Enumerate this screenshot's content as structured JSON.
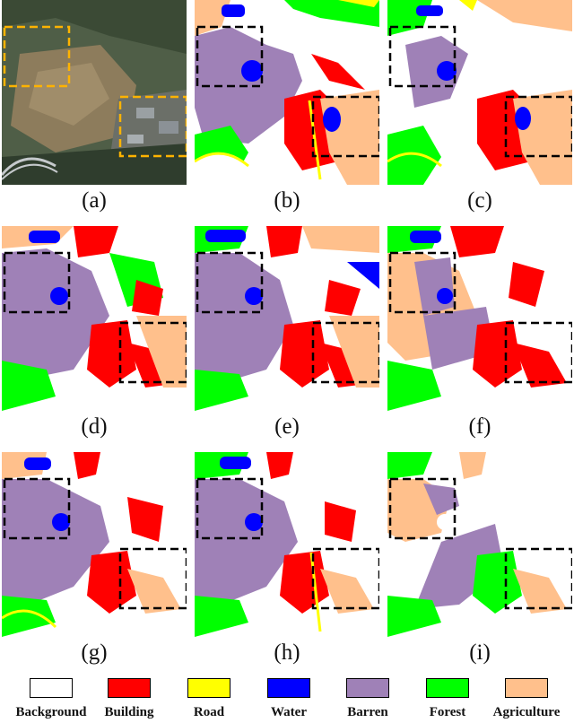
{
  "captions": [
    "(a)",
    "(b)",
    "(c)",
    "(d)",
    "(e)",
    "(f)",
    "(g)",
    "(h)",
    "(i)"
  ],
  "legend": [
    {
      "label": "Background",
      "color": "#ffffff"
    },
    {
      "label": "Building",
      "color": "#ff0000"
    },
    {
      "label": "Road",
      "color": "#ffff00"
    },
    {
      "label": "Water",
      "color": "#0000ff"
    },
    {
      "label": "Barren",
      "color": "#9f81b7"
    },
    {
      "label": "Forest",
      "color": "#00ff00"
    },
    {
      "label": "Agriculture",
      "color": "#ffc08c"
    }
  ],
  "highlight_box_colors": {
    "aerial_image": "#ffb300",
    "segmentation_maps": "#000000"
  }
}
